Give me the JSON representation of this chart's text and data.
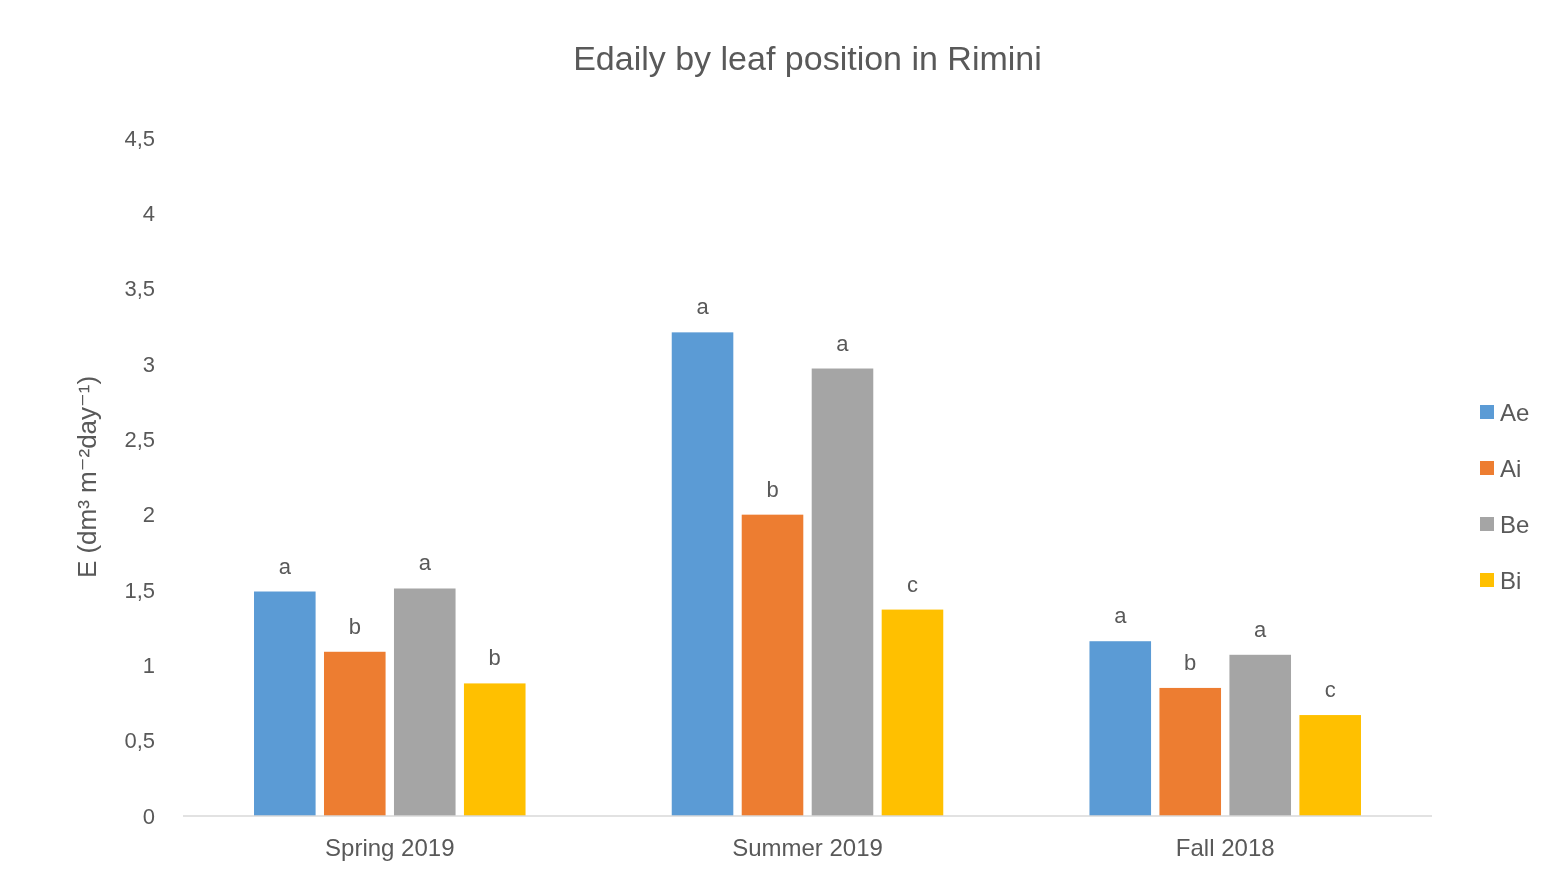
{
  "chart_data": {
    "type": "bar",
    "title": "Edaily by leaf position in Rimini",
    "ylabel": "E (dm³ m⁻²day⁻¹)",
    "categories": [
      "Spring 2019",
      "Summer 2019",
      "Fall 2018"
    ],
    "series": [
      {
        "name": "Ae",
        "color": "#5b9bd5",
        "values": [
          1.49,
          3.21,
          1.16
        ],
        "value_labels": [
          "a",
          "a",
          "a"
        ]
      },
      {
        "name": "Ai",
        "color": "#ed7d31",
        "values": [
          1.09,
          2.0,
          0.85
        ],
        "value_labels": [
          "b",
          "b",
          "b"
        ]
      },
      {
        "name": "Be",
        "color": "#a5a5a5",
        "values": [
          1.51,
          2.97,
          1.07
        ],
        "value_labels": [
          "a",
          "a",
          "a"
        ]
      },
      {
        "name": "Bi",
        "color": "#ffc000",
        "values": [
          0.88,
          1.37,
          0.67
        ],
        "value_labels": [
          "b",
          "c",
          "c"
        ]
      }
    ],
    "ylim": [
      0,
      4.5
    ],
    "yticks": [
      0,
      {
        "value": 0.5,
        "label": "0,5"
      },
      1,
      {
        "value": 1.5,
        "label": "1,5"
      },
      2,
      {
        "value": 2.5,
        "label": "2,5"
      },
      3,
      {
        "value": 3.5,
        "label": "3,5"
      },
      4,
      {
        "value": 4.5,
        "label": "4,5"
      }
    ],
    "grid": false,
    "legend": "right"
  }
}
